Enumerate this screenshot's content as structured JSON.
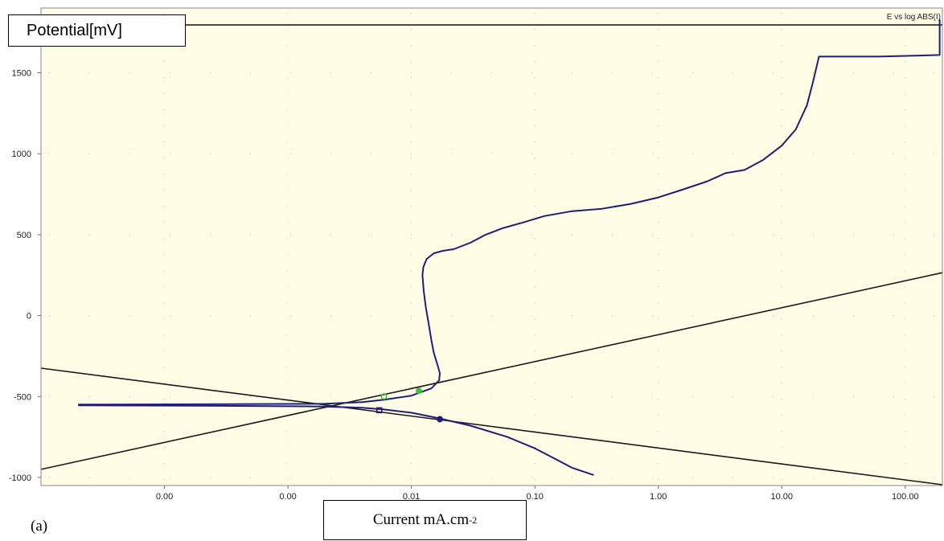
{
  "chart_data": {
    "type": "line",
    "title": "E vs log ABS(I)",
    "ylabel": "Potential[mV]",
    "xlabel_main": "Current mA.cm",
    "xlabel_sup": "-2",
    "panel_label": "(a)",
    "x_scale": "log",
    "xlim": [
      1e-05,
      200
    ],
    "ylim": [
      -1050,
      1900
    ],
    "x_ticks": [
      {
        "value": 0.0001,
        "label": "0.00"
      },
      {
        "value": 0.001,
        "label": "0.00"
      },
      {
        "value": 0.01,
        "label": "0.01"
      },
      {
        "value": 0.1,
        "label": "0.10"
      },
      {
        "value": 1,
        "label": "1.00"
      },
      {
        "value": 10,
        "label": "10.00"
      },
      {
        "value": 100,
        "label": "100.00"
      }
    ],
    "y_ticks": [
      {
        "value": 1500,
        "label": "1500"
      },
      {
        "value": 1000,
        "label": "1000"
      },
      {
        "value": 500,
        "label": "500"
      },
      {
        "value": 0,
        "label": "0"
      },
      {
        "value": -500,
        "label": "-500"
      },
      {
        "value": -1000,
        "label": "-1000"
      }
    ],
    "grid": true,
    "background_color": "#fffde6",
    "curve_color": "#1f1f7a",
    "tafel_color": "#1a1a1a",
    "series": [
      {
        "id": "polarization-anodic",
        "points": [
          [
            2e-05,
            -550
          ],
          [
            0.0002,
            -548
          ],
          [
            0.002,
            -545
          ],
          [
            0.004,
            -535
          ],
          [
            0.006,
            -520
          ],
          [
            0.01,
            -495
          ],
          [
            0.0145,
            -450
          ],
          [
            0.0168,
            -400
          ],
          [
            0.017,
            -355
          ],
          [
            0.0162,
            -300
          ],
          [
            0.0152,
            -230
          ],
          [
            0.0145,
            -150
          ],
          [
            0.0138,
            -50
          ],
          [
            0.0131,
            50
          ],
          [
            0.0126,
            150
          ],
          [
            0.0123,
            250
          ],
          [
            0.0125,
            300
          ],
          [
            0.0133,
            350
          ],
          [
            0.0152,
            385
          ],
          [
            0.018,
            400
          ],
          [
            0.022,
            410
          ],
          [
            0.03,
            450
          ],
          [
            0.04,
            500
          ],
          [
            0.055,
            540
          ],
          [
            0.08,
            575
          ],
          [
            0.12,
            615
          ],
          [
            0.2,
            645
          ],
          [
            0.35,
            660
          ],
          [
            0.6,
            690
          ],
          [
            1.0,
            730
          ],
          [
            1.6,
            780
          ],
          [
            2.5,
            830
          ],
          [
            3.5,
            880
          ],
          [
            5.0,
            900
          ],
          [
            7.0,
            960
          ],
          [
            10,
            1050
          ],
          [
            13,
            1150
          ],
          [
            16,
            1300
          ],
          [
            18,
            1450
          ],
          [
            20,
            1600
          ],
          [
            60,
            1600
          ],
          [
            110,
            1605
          ],
          [
            190,
            1610
          ],
          [
            190,
            1830
          ]
        ]
      },
      {
        "id": "polarization-cathodic",
        "points": [
          [
            2e-05,
            -555
          ],
          [
            0.0002,
            -557
          ],
          [
            0.002,
            -562
          ],
          [
            0.004,
            -570
          ],
          [
            0.006,
            -580
          ],
          [
            0.01,
            -600
          ],
          [
            0.0168,
            -635
          ],
          [
            0.03,
            -680
          ],
          [
            0.06,
            -750
          ],
          [
            0.1,
            -820
          ],
          [
            0.15,
            -890
          ],
          [
            0.2,
            -940
          ],
          [
            0.3,
            -985
          ]
        ]
      }
    ],
    "tafel_lines": [
      {
        "id": "anodic-tafel-line",
        "points": [
          [
            1e-05,
            -950
          ],
          [
            200,
            265
          ]
        ]
      },
      {
        "id": "cathodic-tafel-line",
        "points": [
          [
            1e-05,
            -325
          ],
          [
            200,
            -1045
          ]
        ]
      }
    ],
    "markers": [
      {
        "id": "marker-green-1",
        "x": 0.006,
        "y": -500,
        "shape": "circle",
        "color": "#44bb44",
        "fill": "none"
      },
      {
        "id": "marker-green-2",
        "x": 0.0115,
        "y": -465,
        "shape": "circle",
        "color": "#44bb44",
        "fill": "#44bb44"
      },
      {
        "id": "marker-blue-square",
        "x": 0.0055,
        "y": -585,
        "shape": "square",
        "color": "#1f1f7a",
        "fill": "none"
      },
      {
        "id": "marker-blue-dot",
        "x": 0.017,
        "y": -640,
        "shape": "circle",
        "color": "#1f1f7a",
        "fill": "#1f1f7a"
      }
    ]
  }
}
